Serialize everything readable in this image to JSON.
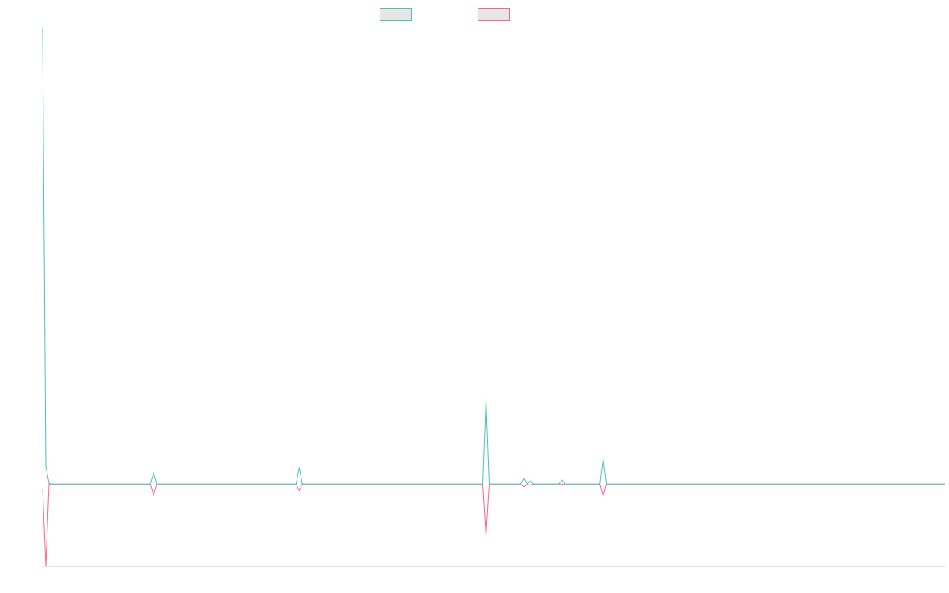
{
  "chart_data": {
    "type": "line",
    "series": [
      {
        "color": "#4bc0c0",
        "values": [
          100,
          3.8,
          0.2,
          0,
          0,
          0,
          0,
          0,
          0,
          0,
          0,
          0,
          0,
          0,
          0,
          0,
          0,
          0,
          0,
          0,
          0,
          0,
          0,
          0,
          0,
          0,
          0,
          0,
          0,
          0,
          0,
          0,
          0,
          0,
          0,
          2.4,
          0,
          0,
          0,
          0,
          0,
          0,
          0,
          0,
          0,
          0,
          0,
          0,
          0,
          0,
          0,
          0,
          0,
          0,
          0,
          0,
          0,
          0,
          0,
          0,
          0,
          0,
          0,
          0,
          0,
          0,
          0,
          0,
          0,
          0,
          0,
          0,
          0,
          0,
          0,
          0,
          0,
          0,
          0,
          0,
          0,
          3.6,
          0,
          0,
          0,
          0,
          0,
          0,
          0,
          0,
          0,
          0,
          0,
          0,
          0,
          0,
          0,
          0,
          0,
          0,
          0,
          0,
          0,
          0,
          0,
          0,
          0,
          0,
          0,
          0,
          0,
          0,
          0,
          0,
          0,
          0,
          0,
          0,
          0,
          0,
          0,
          0,
          0,
          0,
          0,
          0,
          0,
          0,
          0,
          0,
          0,
          0,
          0,
          0,
          0,
          0,
          0,
          0,
          0,
          0,
          18.8,
          0,
          0,
          0,
          0,
          0,
          0,
          0,
          0,
          0,
          0,
          0,
          1.4,
          0,
          0.7,
          0,
          0,
          0,
          0,
          0,
          0,
          0,
          0,
          0,
          0.9,
          0,
          0,
          0,
          0,
          0,
          0,
          0,
          0,
          0,
          0,
          0,
          0,
          5.6,
          0,
          0,
          0,
          0,
          0,
          0,
          0,
          0,
          0,
          0,
          0,
          0,
          0,
          0,
          0,
          0,
          0,
          0,
          0,
          0,
          0,
          0,
          0,
          0,
          0,
          0,
          0,
          0,
          0,
          0,
          0,
          0,
          0,
          0,
          0,
          0,
          0,
          0,
          0,
          0,
          0,
          0,
          0,
          0,
          0,
          0,
          0,
          0,
          0,
          0,
          0,
          0,
          0,
          0,
          0,
          0,
          0,
          0,
          0,
          0,
          0,
          0,
          0,
          0,
          0,
          0,
          0,
          0,
          0,
          0,
          0,
          0,
          0,
          0,
          0,
          0,
          0,
          0,
          0,
          0,
          0,
          0,
          0,
          0,
          0,
          0,
          0,
          0,
          0,
          0,
          0,
          0,
          0,
          0,
          0,
          0,
          0,
          0,
          0,
          0,
          0,
          0,
          0,
          0,
          0,
          0,
          0,
          0
        ]
      },
      {
        "color": "#ff6384",
        "values": [
          -1,
          -18,
          0,
          0,
          0,
          0,
          0,
          0,
          0,
          0,
          0,
          0,
          0,
          0,
          0,
          0,
          0,
          0,
          0,
          0,
          0,
          0,
          0,
          0,
          0,
          0,
          0,
          0,
          0,
          0,
          0,
          0,
          0,
          0,
          0,
          -2.3,
          0,
          0,
          0,
          0,
          0,
          0,
          0,
          0,
          0,
          0,
          0,
          0,
          0,
          0,
          0,
          0,
          0,
          0,
          0,
          0,
          0,
          0,
          0,
          0,
          0,
          0,
          0,
          0,
          0,
          0,
          0,
          0,
          0,
          0,
          0,
          0,
          0,
          0,
          0,
          0,
          0,
          0,
          0,
          0,
          0,
          -1.4,
          0,
          0,
          0,
          0,
          0,
          0,
          0,
          0,
          0,
          0,
          0,
          0,
          0,
          0,
          0,
          0,
          0,
          0,
          0,
          0,
          0,
          0,
          0,
          0,
          0,
          0,
          0,
          0,
          0,
          0,
          0,
          0,
          0,
          0,
          0,
          0,
          0,
          0,
          0,
          0,
          0,
          0,
          0,
          0,
          0,
          0,
          0,
          0,
          0,
          0,
          0,
          0,
          0,
          0,
          0,
          0,
          0,
          0,
          -11.5,
          0,
          0,
          0,
          0,
          0,
          0,
          0,
          0,
          0,
          0,
          0,
          -0.7,
          0,
          -0.3,
          0,
          0,
          0,
          0,
          0,
          0,
          0,
          0,
          0,
          0,
          0,
          0,
          0,
          0,
          0,
          0,
          0,
          0,
          0,
          0,
          0,
          0,
          -2.6,
          0,
          0,
          0,
          0,
          0,
          0,
          0,
          0,
          0,
          0,
          0,
          0,
          0,
          0,
          0,
          0,
          0,
          0,
          0,
          0,
          0,
          0,
          0,
          0,
          0,
          0,
          0,
          0,
          0,
          0,
          0,
          0,
          0,
          0,
          0,
          0,
          0,
          0,
          0,
          0,
          0,
          0,
          0,
          0,
          0,
          0,
          0,
          0,
          0,
          0,
          0,
          0,
          0,
          0,
          0,
          0,
          0,
          0,
          0,
          0,
          0,
          0,
          0,
          0,
          0,
          0,
          0,
          0,
          0,
          0,
          0,
          0,
          0,
          0,
          0,
          0,
          0,
          0,
          0,
          0,
          0,
          0,
          0,
          0,
          0,
          0,
          0,
          0,
          0,
          0,
          0,
          0,
          0,
          0,
          0,
          0,
          0,
          0,
          0,
          0,
          0,
          0,
          0,
          0,
          0,
          0,
          0,
          0
        ]
      }
    ]
  }
}
